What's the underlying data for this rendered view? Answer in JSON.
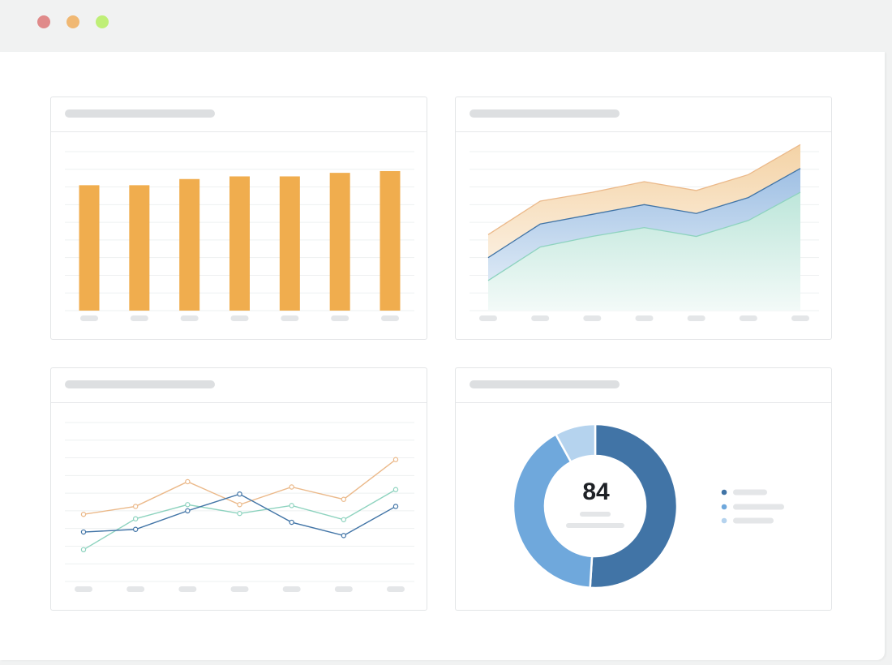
{
  "window": {
    "controls": [
      {
        "name": "close",
        "color": "#e08a8a"
      },
      {
        "name": "minimize",
        "color": "#f0b873"
      },
      {
        "name": "maximize",
        "color": "#bfef77"
      }
    ]
  },
  "colors": {
    "orange": "#f0ad4e",
    "orange_line": "#ebb98a",
    "blue_dark": "#4174a6",
    "blue_mid": "#6fa8dc",
    "blue_light": "#b5d3ee",
    "teal": "#8ed3bf",
    "grid": "#eef0f1",
    "placeholder": "#e4e6e8"
  },
  "chart_data": [
    {
      "type": "bar",
      "categories_count": 7,
      "values": [
        71,
        71,
        74.5,
        76,
        76,
        78,
        79
      ],
      "ylim": [
        0,
        90
      ],
      "grid": true
    },
    {
      "type": "area",
      "stacked": true,
      "categories_count": 7,
      "series": [
        {
          "values": [
            17,
            36,
            42,
            47,
            42,
            51,
            67
          ]
        },
        {
          "values": [
            13,
            13,
            12.5,
            13,
            13,
            13,
            13.5
          ]
        },
        {
          "values": [
            13,
            13,
            12.5,
            13,
            13,
            13,
            13.5
          ]
        }
      ],
      "ylim": [
        0,
        90
      ],
      "grid": true
    },
    {
      "type": "line",
      "categories_count": 7,
      "series": [
        {
          "values": [
            38,
            42.5,
            56.5,
            43.5,
            53.5,
            46.5,
            69
          ]
        },
        {
          "values": [
            18,
            35.5,
            43.5,
            38.5,
            43,
            35,
            52
          ]
        },
        {
          "values": [
            28,
            29.5,
            40,
            49.5,
            33.5,
            26,
            42.5
          ]
        }
      ],
      "ylim": [
        0,
        90
      ],
      "grid": true
    },
    {
      "type": "pie",
      "center_value": "84",
      "values": [
        51,
        41,
        8
      ],
      "legend_entries_count": 3
    }
  ]
}
